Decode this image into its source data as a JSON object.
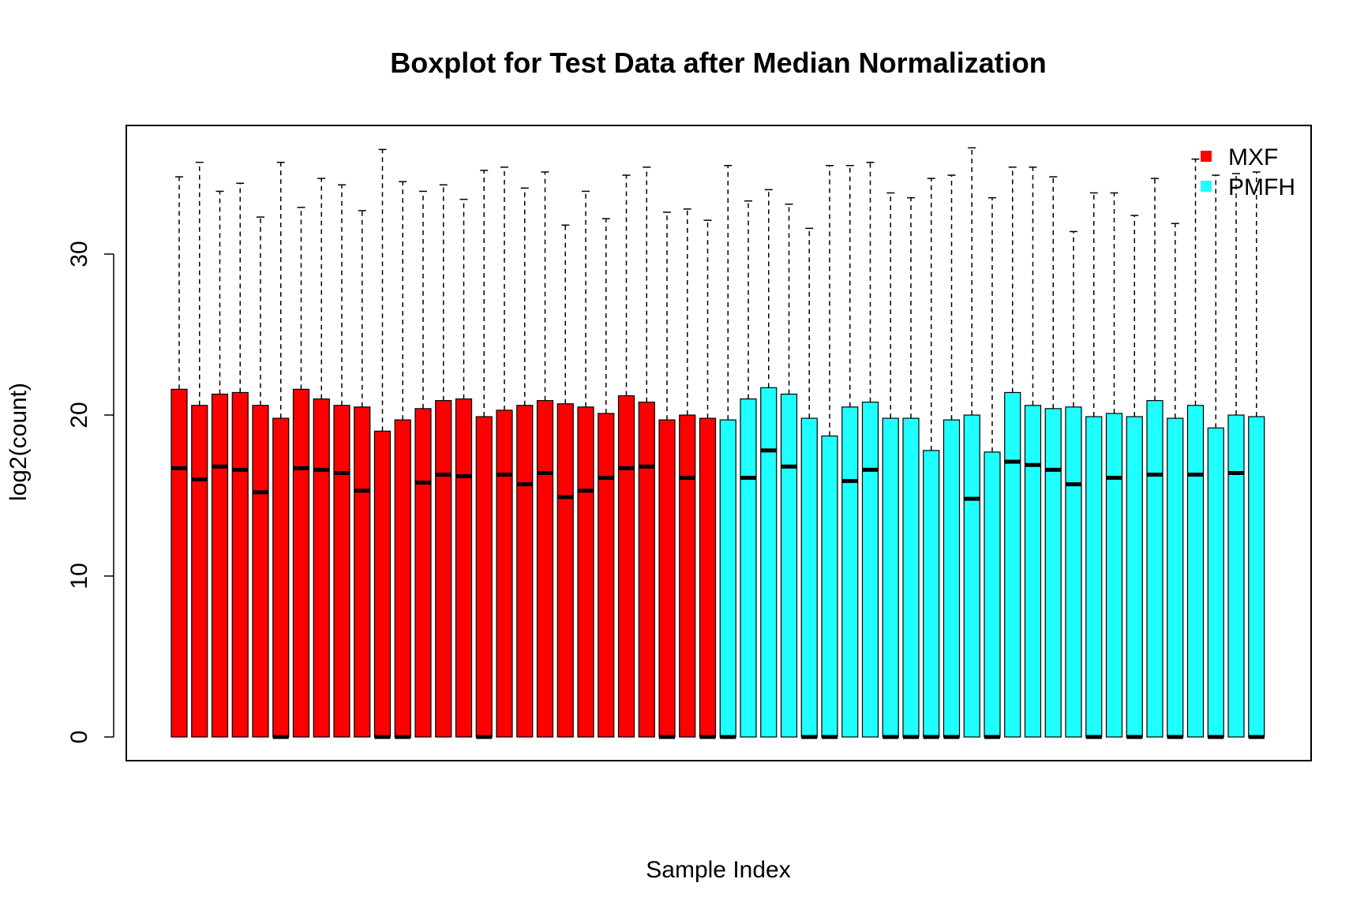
{
  "chart_data": {
    "type": "boxplot",
    "title": "Boxplot for Test Data after Median Normalization",
    "xlabel": "Sample Index",
    "ylabel": "log2(count)",
    "ylim": [
      -7,
      38
    ],
    "yticks": [
      0,
      10,
      20,
      30
    ],
    "grid": false,
    "legend": {
      "position": "top-right",
      "entries": [
        {
          "label": "MXF",
          "color": "#FF0000"
        },
        {
          "label": "PMFH",
          "color": "#1EFFFF"
        }
      ]
    },
    "groups": [
      {
        "name": "MXF",
        "color": "#FF0000",
        "count": 27
      },
      {
        "name": "PMFH",
        "color": "#1EFFFF",
        "count": 27
      }
    ],
    "series": [
      {
        "group": "MXF",
        "min": 0,
        "q1": 0,
        "median": 16.7,
        "q3": 21.6,
        "max": 34.8
      },
      {
        "group": "MXF",
        "min": 0,
        "q1": 0,
        "median": 16.0,
        "q3": 20.6,
        "max": 35.7
      },
      {
        "group": "MXF",
        "min": 0,
        "q1": 0,
        "median": 16.8,
        "q3": 21.3,
        "max": 33.9
      },
      {
        "group": "MXF",
        "min": 0,
        "q1": 0,
        "median": 16.6,
        "q3": 21.4,
        "max": 34.4
      },
      {
        "group": "MXF",
        "min": 0,
        "q1": 0,
        "median": 15.2,
        "q3": 20.6,
        "max": 32.3
      },
      {
        "group": "MXF",
        "min": 0,
        "q1": 0,
        "median": 0,
        "q3": 19.8,
        "max": 35.7
      },
      {
        "group": "MXF",
        "min": 0,
        "q1": 0,
        "median": 16.7,
        "q3": 21.6,
        "max": 32.9
      },
      {
        "group": "MXF",
        "min": 0,
        "q1": 0,
        "median": 16.6,
        "q3": 21.0,
        "max": 34.7
      },
      {
        "group": "MXF",
        "min": 0,
        "q1": 0,
        "median": 16.4,
        "q3": 20.6,
        "max": 34.3
      },
      {
        "group": "MXF",
        "min": 0,
        "q1": 0,
        "median": 15.3,
        "q3": 20.5,
        "max": 32.7
      },
      {
        "group": "MXF",
        "min": 0,
        "q1": 0,
        "median": 0,
        "q3": 19.0,
        "max": 36.5
      },
      {
        "group": "MXF",
        "min": 0,
        "q1": 0,
        "median": 0,
        "q3": 19.7,
        "max": 34.5
      },
      {
        "group": "MXF",
        "min": 0,
        "q1": 0,
        "median": 15.8,
        "q3": 20.4,
        "max": 33.9
      },
      {
        "group": "MXF",
        "min": 0,
        "q1": 0,
        "median": 16.3,
        "q3": 20.9,
        "max": 34.3
      },
      {
        "group": "MXF",
        "min": 0,
        "q1": 0,
        "median": 16.2,
        "q3": 21.0,
        "max": 33.4
      },
      {
        "group": "MXF",
        "min": 0,
        "q1": 0,
        "median": 0,
        "q3": 19.9,
        "max": 35.2
      },
      {
        "group": "MXF",
        "min": 0,
        "q1": 0,
        "median": 16.3,
        "q3": 20.3,
        "max": 35.4
      },
      {
        "group": "MXF",
        "min": 0,
        "q1": 0,
        "median": 15.7,
        "q3": 20.6,
        "max": 34.1
      },
      {
        "group": "MXF",
        "min": 0,
        "q1": 0,
        "median": 16.4,
        "q3": 20.9,
        "max": 35.1
      },
      {
        "group": "MXF",
        "min": 0,
        "q1": 0,
        "median": 14.9,
        "q3": 20.7,
        "max": 31.8
      },
      {
        "group": "MXF",
        "min": 0,
        "q1": 0,
        "median": 15.3,
        "q3": 20.5,
        "max": 33.9
      },
      {
        "group": "MXF",
        "min": 0,
        "q1": 0,
        "median": 16.1,
        "q3": 20.1,
        "max": 32.2
      },
      {
        "group": "MXF",
        "min": 0,
        "q1": 0,
        "median": 16.7,
        "q3": 21.2,
        "max": 34.9
      },
      {
        "group": "MXF",
        "min": 0,
        "q1": 0,
        "median": 16.8,
        "q3": 20.8,
        "max": 35.4
      },
      {
        "group": "MXF",
        "min": 0,
        "q1": 0,
        "median": 0,
        "q3": 19.7,
        "max": 32.6
      },
      {
        "group": "MXF",
        "min": 0,
        "q1": 0,
        "median": 16.1,
        "q3": 20.0,
        "max": 32.8
      },
      {
        "group": "MXF",
        "min": 0,
        "q1": 0,
        "median": 0,
        "q3": 19.8,
        "max": 32.1
      },
      {
        "group": "PMFH",
        "min": 0,
        "q1": 0,
        "median": 0,
        "q3": 19.7,
        "max": 35.5
      },
      {
        "group": "PMFH",
        "min": 0,
        "q1": 0,
        "median": 16.1,
        "q3": 21.0,
        "max": 33.3
      },
      {
        "group": "PMFH",
        "min": 0,
        "q1": 0,
        "median": 17.8,
        "q3": 21.7,
        "max": 34.0
      },
      {
        "group": "PMFH",
        "min": 0,
        "q1": 0,
        "median": 16.8,
        "q3": 21.3,
        "max": 33.1
      },
      {
        "group": "PMFH",
        "min": 0,
        "q1": 0,
        "median": 0,
        "q3": 19.8,
        "max": 31.6
      },
      {
        "group": "PMFH",
        "min": 0,
        "q1": 0,
        "median": 0,
        "q3": 18.7,
        "max": 35.5
      },
      {
        "group": "PMFH",
        "min": 0,
        "q1": 0,
        "median": 15.9,
        "q3": 20.5,
        "max": 35.5
      },
      {
        "group": "PMFH",
        "min": 0,
        "q1": 0,
        "median": 16.6,
        "q3": 20.8,
        "max": 35.7
      },
      {
        "group": "PMFH",
        "min": 0,
        "q1": 0,
        "median": 0,
        "q3": 19.8,
        "max": 33.8
      },
      {
        "group": "PMFH",
        "min": 0,
        "q1": 0,
        "median": 0,
        "q3": 19.8,
        "max": 33.5
      },
      {
        "group": "PMFH",
        "min": 0,
        "q1": 0,
        "median": 0,
        "q3": 17.8,
        "max": 34.7
      },
      {
        "group": "PMFH",
        "min": 0,
        "q1": 0,
        "median": 0,
        "q3": 19.7,
        "max": 34.9
      },
      {
        "group": "PMFH",
        "min": 0,
        "q1": 0,
        "median": 14.8,
        "q3": 20.0,
        "max": 36.6
      },
      {
        "group": "PMFH",
        "min": 0,
        "q1": 0,
        "median": 0,
        "q3": 17.7,
        "max": 33.5
      },
      {
        "group": "PMFH",
        "min": 0,
        "q1": 0,
        "median": 17.1,
        "q3": 21.4,
        "max": 35.4
      },
      {
        "group": "PMFH",
        "min": 0,
        "q1": 0,
        "median": 16.9,
        "q3": 20.6,
        "max": 35.4
      },
      {
        "group": "PMFH",
        "min": 0,
        "q1": 0,
        "median": 16.6,
        "q3": 20.4,
        "max": 34.8
      },
      {
        "group": "PMFH",
        "min": 0,
        "q1": 0,
        "median": 15.7,
        "q3": 20.5,
        "max": 31.4
      },
      {
        "group": "PMFH",
        "min": 0,
        "q1": 0,
        "median": 0,
        "q3": 19.9,
        "max": 33.8
      },
      {
        "group": "PMFH",
        "min": 0,
        "q1": 0,
        "median": 16.1,
        "q3": 20.1,
        "max": 33.8
      },
      {
        "group": "PMFH",
        "min": 0,
        "q1": 0,
        "median": 0,
        "q3": 19.9,
        "max": 32.4
      },
      {
        "group": "PMFH",
        "min": 0,
        "q1": 0,
        "median": 16.3,
        "q3": 20.9,
        "max": 34.7
      },
      {
        "group": "PMFH",
        "min": 0,
        "q1": 0,
        "median": 0,
        "q3": 19.8,
        "max": 31.9
      },
      {
        "group": "PMFH",
        "min": 0,
        "q1": 0,
        "median": 16.3,
        "q3": 20.6,
        "max": 35.9
      },
      {
        "group": "PMFH",
        "min": 0,
        "q1": 0,
        "median": 0,
        "q3": 19.2,
        "max": 34.9
      },
      {
        "group": "PMFH",
        "min": 0,
        "q1": 0,
        "median": 16.4,
        "q3": 20.0,
        "max": 35.0
      },
      {
        "group": "PMFH",
        "min": 0,
        "q1": 0,
        "median": 0,
        "q3": 19.9,
        "max": 35.1
      }
    ]
  }
}
